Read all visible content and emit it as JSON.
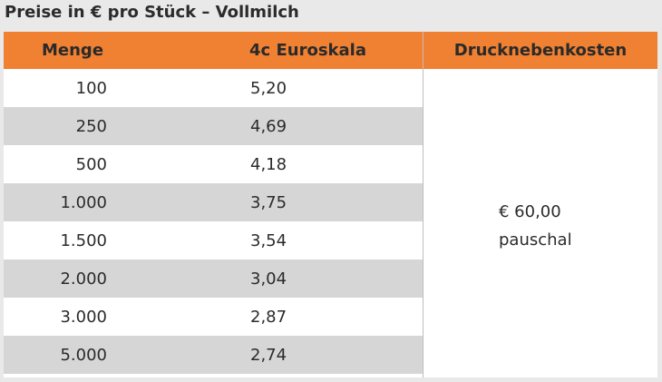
{
  "title": "Preise in € pro Stück – Vollmilch",
  "headers": {
    "menge": "Menge",
    "euroskala": "4c Euroskala",
    "drucknebenkosten": "Drucknebenkosten"
  },
  "rows": [
    {
      "menge": "100",
      "preis": "5,20"
    },
    {
      "menge": "250",
      "preis": "4,69"
    },
    {
      "menge": "500",
      "preis": "4,18"
    },
    {
      "menge": "1.000",
      "preis": "3,75"
    },
    {
      "menge": "1.500",
      "preis": "3,54"
    },
    {
      "menge": "2.000",
      "preis": "3,04"
    },
    {
      "menge": "3.000",
      "preis": "2,87"
    },
    {
      "menge": "5.000",
      "preis": "2,74"
    }
  ],
  "nebenkosten": {
    "betrag": "€ 60,00",
    "art": "pauschal"
  },
  "colors": {
    "header": "#f08032",
    "alt_row": "#d6d6d6",
    "background": "#e9e9e9"
  }
}
